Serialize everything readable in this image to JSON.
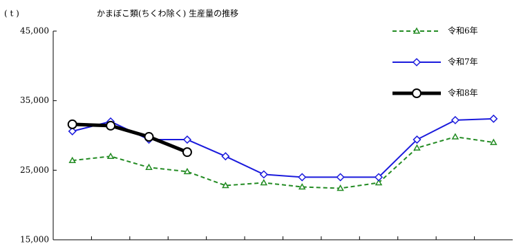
{
  "chart_data": {
    "type": "line",
    "title": "かまぼこ類(ちくわ除く) 生産量の推移",
    "y_axis_label": "( t )",
    "categories": [
      null,
      null,
      null,
      null,
      null,
      null,
      null,
      null,
      null,
      null,
      null,
      null
    ],
    "series": [
      {
        "name": "令和6年",
        "color": "#228b22",
        "dash": true,
        "marker": "triangle",
        "values": [
          26400,
          27000,
          25400,
          24800,
          22800,
          23200,
          22600,
          22400,
          23200,
          28200,
          29800,
          29000
        ]
      },
      {
        "name": "令和7年",
        "color": "#1a1adc",
        "dash": false,
        "marker": "diamond",
        "values": [
          30600,
          32000,
          29400,
          29400,
          27000,
          24400,
          24000,
          24000,
          24000,
          29400,
          32200,
          32400
        ]
      },
      {
        "name": "令和8年",
        "color": "#000000",
        "dash": false,
        "marker": "circle",
        "values": [
          31600,
          31400,
          29800,
          27600,
          null,
          null,
          null,
          null,
          null,
          null,
          null,
          null
        ]
      }
    ],
    "ylim": [
      15000,
      45000
    ],
    "yticks": [
      {
        "value": 15000,
        "label": "15,000"
      },
      {
        "value": 25000,
        "label": "25,000"
      },
      {
        "value": 35000,
        "label": "35,000"
      },
      {
        "value": 45000,
        "label": "45,000"
      }
    ],
    "grid": false,
    "legend": "top-right"
  }
}
